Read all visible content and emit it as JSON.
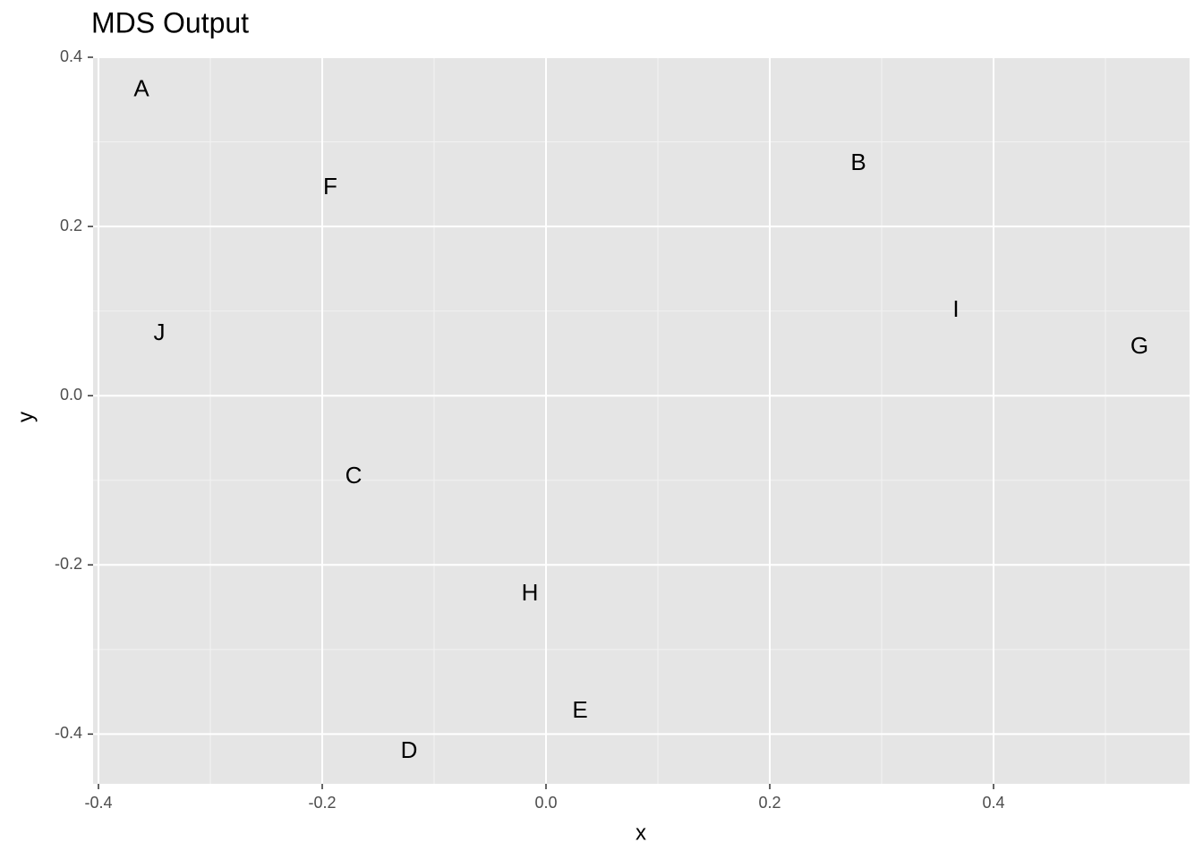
{
  "chart_data": {
    "type": "scatter",
    "title": "MDS Output",
    "x_label": "x",
    "y_label": "y",
    "point_labels": [
      "A",
      "B",
      "C",
      "D",
      "E",
      "F",
      "G",
      "H",
      "I",
      "J"
    ],
    "x": [
      -0.3616,
      0.2792,
      -0.172,
      -0.1224,
      0.0304,
      -0.1928,
      0.5304,
      -0.0144,
      0.3664,
      -0.3456
    ],
    "values": [
      0.3615,
      0.2738,
      -0.0962,
      -0.4207,
      -0.3732,
      0.2452,
      0.0571,
      -0.2347,
      0.1004,
      0.0729
    ],
    "color": "#000000",
    "xlim": [
      -0.4048,
      0.5752
    ],
    "ylim": [
      -0.4588,
      0.4
    ],
    "xticks": [
      -0.4,
      -0.2,
      {
        "value": 0,
        "label": "0.0"
      },
      0.2,
      0.4
    ],
    "yticks": [
      -0.4,
      -0.2,
      {
        "value": 0,
        "label": "0.0"
      },
      0.2,
      0.4
    ],
    "grid": true
  }
}
